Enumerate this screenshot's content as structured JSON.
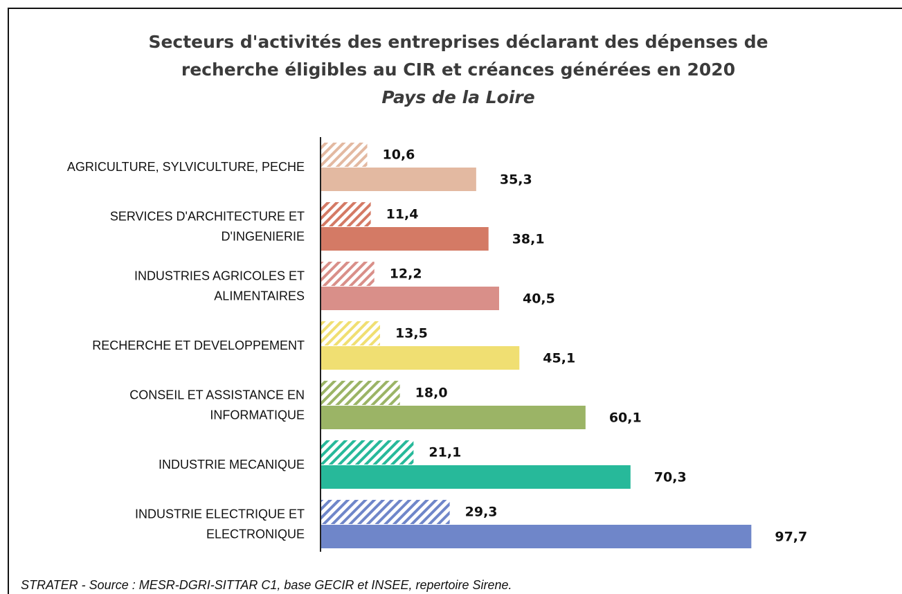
{
  "chart_data": {
    "type": "hbar",
    "title": [
      "Secteurs d'activités des entreprises déclarant des dépenses de",
      "recherche éligibles au CIR et créances générées en 2020"
    ],
    "subtitle": "Pays de la Loire",
    "categories": [
      "AGRICULTURE, SYLVICULTURE, PECHE",
      "SERVICES D'ARCHITECTURE ET\nD'INGENIERIE",
      "INDUSTRIES AGRICOLES ET\nALIMENTAIRES",
      "RECHERCHE ET DEVELOPPEMENT",
      "CONSEIL ET ASSISTANCE EN\nINFORMATIQUE",
      "INDUSTRIE MECANIQUE",
      "INDUSTRIE ELECTRIQUE ET\nELECTRONIQUE"
    ],
    "colors": [
      "#e3b9a1",
      "#d47a65",
      "#d98f89",
      "#f0df72",
      "#9bb466",
      "#27b99a",
      "#6f86c9"
    ],
    "series": [
      {
        "pattern": "hatch",
        "values": [
          10.6,
          11.4,
          12.2,
          13.5,
          18.0,
          21.1,
          29.3
        ],
        "value_labels": [
          "10,6",
          "11,4",
          "12,2",
          "13,5",
          "18,0",
          "21,1",
          "29,3"
        ]
      },
      {
        "pattern": "solid",
        "values": [
          35.3,
          38.1,
          40.5,
          45.1,
          60.1,
          70.3,
          97.7
        ],
        "value_labels": [
          "35,3",
          "38,1",
          "40,5",
          "45,1",
          "60,1",
          "70,3",
          "97,7"
        ]
      }
    ],
    "xlim": [
      0,
      100
    ],
    "source": "STRATER - Source : MESR-DGRI-SITTAR C1, base GECIR et INSEE, repertoire Sirene."
  }
}
